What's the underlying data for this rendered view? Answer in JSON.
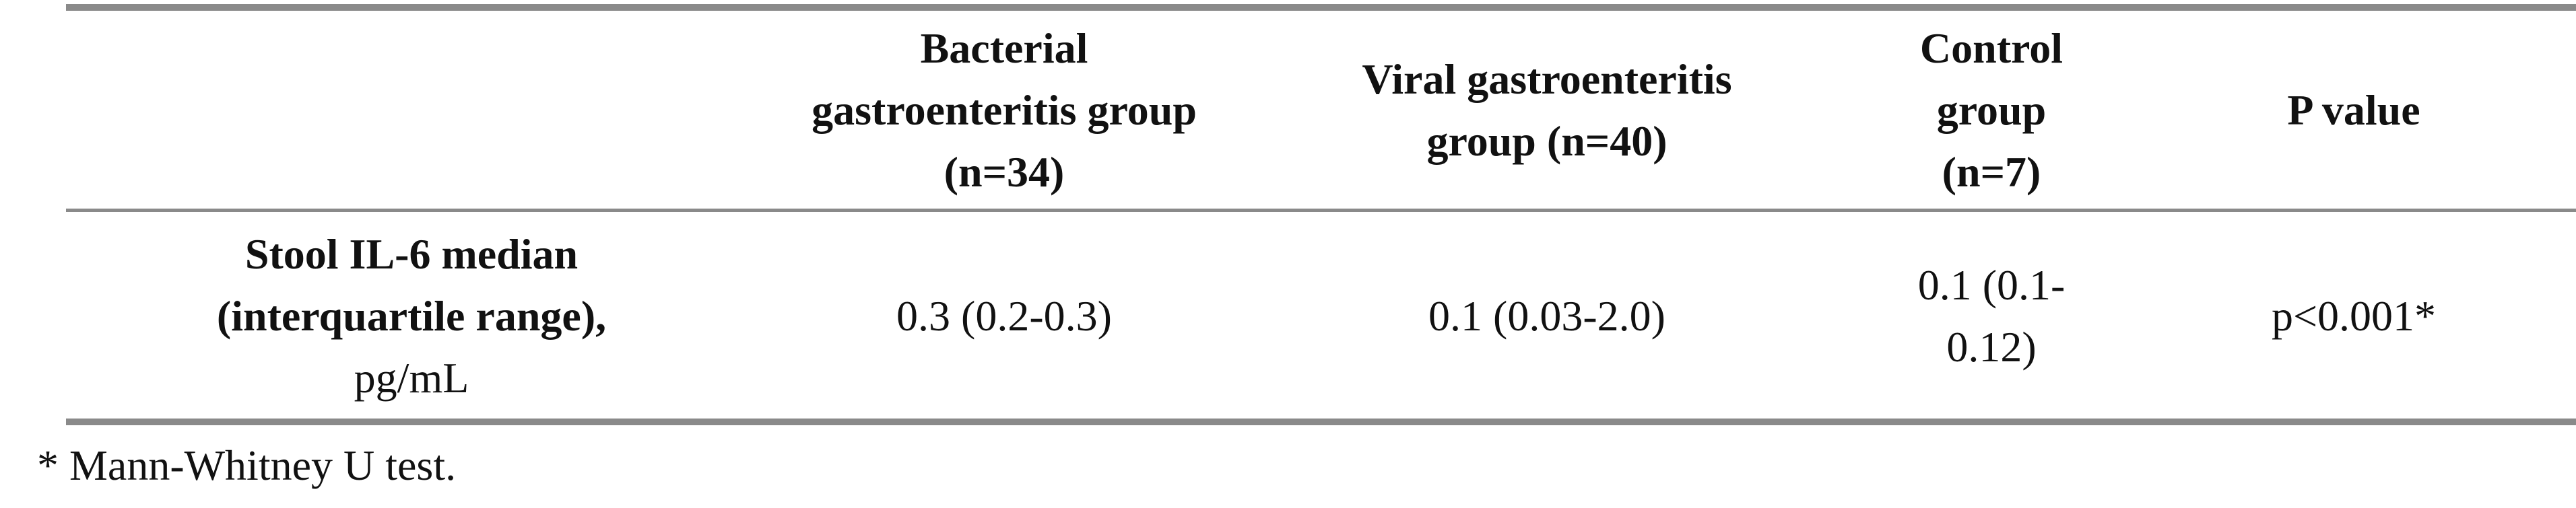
{
  "table": {
    "header": [
      [],
      [
        "Bacterial",
        "gastroenteritis group",
        "(n=34)"
      ],
      [
        "Viral gastroenteritis",
        "group (n=40)"
      ],
      [
        "Control",
        "group",
        "(n=7)"
      ],
      [
        "P value"
      ]
    ],
    "rows": [
      [
        [
          "Stool IL-6 median",
          "(interquartile range),",
          "pg/mL"
        ],
        [
          "0.3 (0.2-0.3)"
        ],
        [
          "0.1 (0.03-2.0)"
        ],
        [
          "0.1 (0.1-",
          "0.12)"
        ],
        [
          "p<0.001*"
        ]
      ]
    ]
  },
  "footnote": "* Mann-Whitney U test."
}
